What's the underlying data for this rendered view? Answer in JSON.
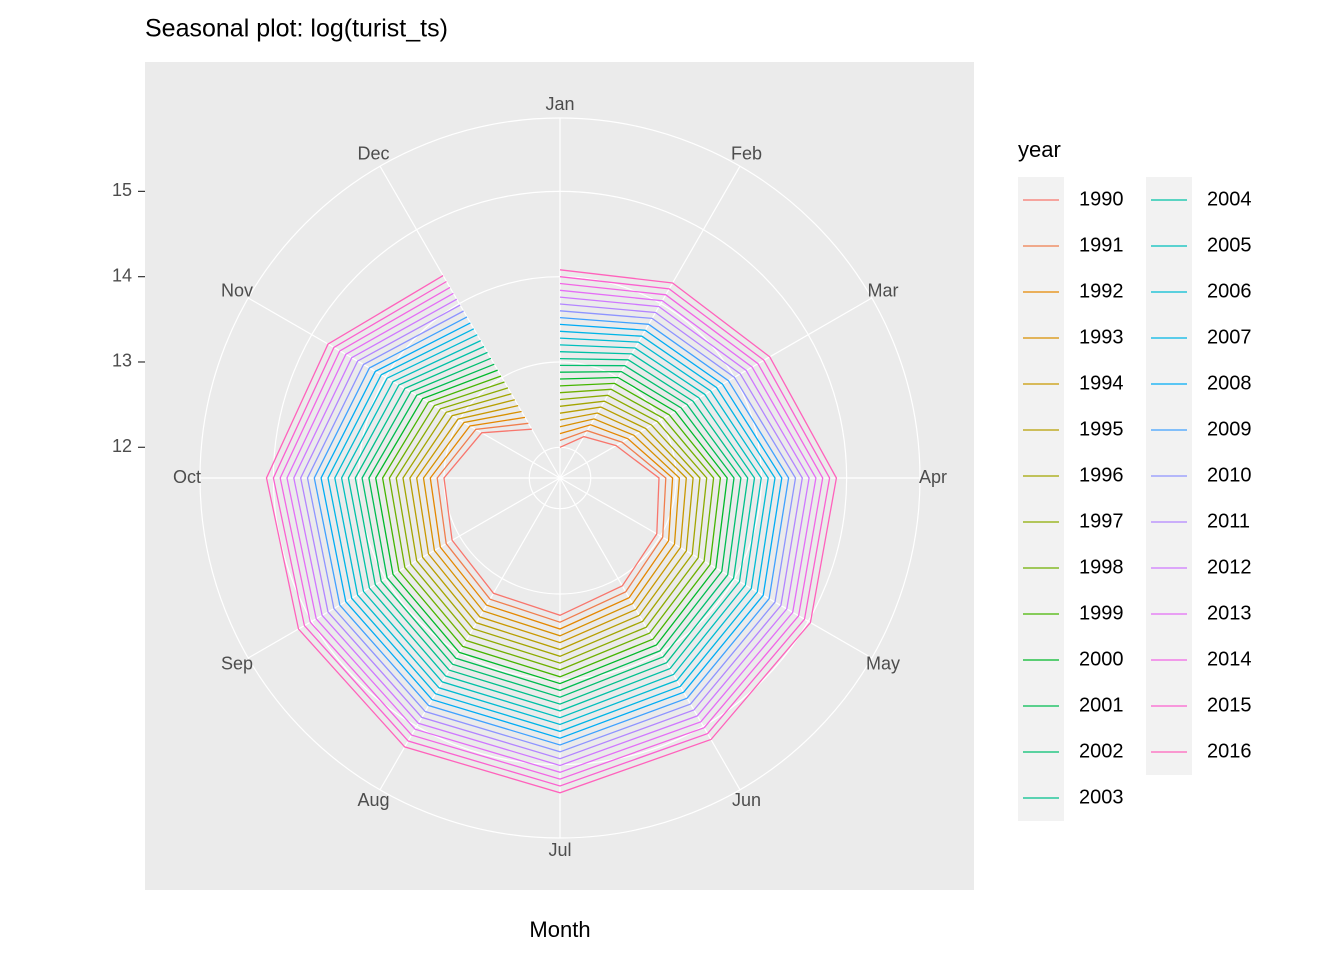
{
  "chart_data": {
    "type": "line",
    "polar": true,
    "title": "Seasonal plot: log(turist_ts)",
    "x_label": "Month",
    "legend_title": "year",
    "categories": [
      "Jan",
      "Feb",
      "Mar",
      "Apr",
      "May",
      "Jun",
      "Jul",
      "Aug",
      "Sep",
      "Oct",
      "Nov",
      "Dec"
    ],
    "ylim": [
      11.64,
      15.86
    ],
    "yticks": [
      12,
      13,
      14,
      15
    ],
    "grid": true,
    "series": [
      {
        "name": "1990",
        "color": "#F8766D",
        "values": [
          12.0,
          12.2,
          12.4,
          12.8,
          12.95,
          13.1,
          13.25,
          13.2,
          13.1,
          13.0,
          12.7,
          12.3
        ]
      },
      {
        "name": "1991",
        "color": "#F07E4E",
        "values": [
          12.08,
          12.28,
          12.48,
          12.88,
          13.03,
          13.18,
          13.33,
          13.28,
          13.18,
          13.08,
          12.78,
          12.38
        ]
      },
      {
        "name": "1992",
        "color": "#E58700",
        "values": [
          12.16,
          12.36,
          12.56,
          12.96,
          13.11,
          13.26,
          13.41,
          13.36,
          13.26,
          13.16,
          12.86,
          12.46
        ]
      },
      {
        "name": "1993",
        "color": "#D89000",
        "values": [
          12.24,
          12.44,
          12.64,
          13.04,
          13.19,
          13.34,
          13.49,
          13.44,
          13.34,
          13.24,
          12.94,
          12.54
        ]
      },
      {
        "name": "1994",
        "color": "#C99800",
        "values": [
          12.32,
          12.52,
          12.72,
          13.12,
          13.27,
          13.42,
          13.57,
          13.52,
          13.42,
          13.32,
          13.02,
          12.62
        ]
      },
      {
        "name": "1995",
        "color": "#B79F00",
        "values": [
          12.4,
          12.6,
          12.8,
          13.2,
          13.35,
          13.5,
          13.65,
          13.6,
          13.5,
          13.4,
          13.1,
          12.7
        ]
      },
      {
        "name": "1996",
        "color": "#A3A500",
        "values": [
          12.48,
          12.68,
          12.88,
          13.28,
          13.43,
          13.58,
          13.73,
          13.68,
          13.58,
          13.48,
          13.18,
          12.78
        ]
      },
      {
        "name": "1997",
        "color": "#8CAB00",
        "values": [
          12.56,
          12.76,
          12.96,
          13.36,
          13.51,
          13.66,
          13.81,
          13.76,
          13.66,
          13.56,
          13.26,
          12.86
        ]
      },
      {
        "name": "1998",
        "color": "#6FB000",
        "values": [
          12.64,
          12.84,
          13.04,
          13.44,
          13.59,
          13.74,
          13.89,
          13.84,
          13.74,
          13.64,
          13.34,
          12.94
        ]
      },
      {
        "name": "1999",
        "color": "#45B500",
        "values": [
          12.72,
          12.92,
          13.12,
          13.52,
          13.67,
          13.82,
          13.97,
          13.92,
          13.82,
          13.72,
          13.42,
          13.02
        ]
      },
      {
        "name": "2000",
        "color": "#00B92A",
        "values": [
          12.8,
          13.0,
          13.2,
          13.6,
          13.75,
          13.9,
          14.05,
          14.0,
          13.9,
          13.8,
          13.5,
          13.1
        ]
      },
      {
        "name": "2001",
        "color": "#00BC51",
        "values": [
          12.88,
          13.08,
          13.28,
          13.68,
          13.83,
          13.98,
          14.13,
          14.08,
          13.98,
          13.88,
          13.58,
          13.18
        ]
      },
      {
        "name": "2002",
        "color": "#00BF6F",
        "values": [
          12.96,
          13.16,
          13.36,
          13.76,
          13.91,
          14.06,
          14.21,
          14.16,
          14.06,
          13.96,
          13.66,
          13.26
        ]
      },
      {
        "name": "2003",
        "color": "#00C08B",
        "values": [
          13.04,
          13.24,
          13.44,
          13.84,
          13.99,
          14.14,
          14.29,
          14.24,
          14.14,
          14.04,
          13.74,
          13.34
        ]
      },
      {
        "name": "2004",
        "color": "#00C1A5",
        "values": [
          13.12,
          13.32,
          13.52,
          13.92,
          14.07,
          14.22,
          14.37,
          14.32,
          14.22,
          14.12,
          13.82,
          13.42
        ]
      },
      {
        "name": "2005",
        "color": "#00BFBD",
        "values": [
          13.2,
          13.4,
          13.6,
          14.0,
          14.15,
          14.3,
          14.45,
          14.4,
          14.3,
          14.2,
          13.9,
          13.5
        ]
      },
      {
        "name": "2006",
        "color": "#00BBD3",
        "values": [
          13.28,
          13.48,
          13.68,
          14.08,
          14.23,
          14.38,
          14.53,
          14.48,
          14.38,
          14.28,
          13.98,
          13.58
        ]
      },
      {
        "name": "2007",
        "color": "#00B5E6",
        "values": [
          13.36,
          13.56,
          13.76,
          14.16,
          14.31,
          14.46,
          14.61,
          14.56,
          14.46,
          14.36,
          14.06,
          13.66
        ]
      },
      {
        "name": "2008",
        "color": "#00ACF5",
        "values": [
          13.44,
          13.64,
          13.84,
          14.24,
          14.39,
          14.54,
          14.69,
          14.64,
          14.54,
          14.44,
          14.14,
          13.74
        ]
      },
      {
        "name": "2009",
        "color": "#3FA1FF",
        "values": [
          13.52,
          13.72,
          13.92,
          14.32,
          14.47,
          14.62,
          14.77,
          14.72,
          14.62,
          14.52,
          14.22,
          13.82
        ]
      },
      {
        "name": "2010",
        "color": "#8E94FF",
        "values": [
          13.6,
          13.8,
          14.0,
          14.4,
          14.55,
          14.7,
          14.85,
          14.8,
          14.7,
          14.6,
          14.3,
          13.9
        ]
      },
      {
        "name": "2011",
        "color": "#B385FF",
        "values": [
          13.68,
          13.88,
          14.08,
          14.48,
          14.63,
          14.78,
          14.93,
          14.88,
          14.78,
          14.68,
          14.38,
          13.98
        ]
      },
      {
        "name": "2012",
        "color": "#CF78FF",
        "values": [
          13.76,
          13.96,
          14.16,
          14.56,
          14.71,
          14.86,
          15.01,
          14.96,
          14.86,
          14.76,
          14.46,
          14.06
        ]
      },
      {
        "name": "2013",
        "color": "#E46EF6",
        "values": [
          13.84,
          14.04,
          14.24,
          14.64,
          14.79,
          14.94,
          15.09,
          15.04,
          14.94,
          14.84,
          14.54,
          14.14
        ]
      },
      {
        "name": "2014",
        "color": "#F266E5",
        "values": [
          13.92,
          14.12,
          14.32,
          14.72,
          14.87,
          15.02,
          15.17,
          15.12,
          15.02,
          14.92,
          14.62,
          14.22
        ]
      },
      {
        "name": "2015",
        "color": "#FB61D0",
        "values": [
          14.0,
          14.2,
          14.4,
          14.8,
          14.95,
          15.1,
          15.25,
          15.2,
          15.1,
          15.0,
          14.7,
          14.3
        ]
      },
      {
        "name": "2016",
        "color": "#FF62BC",
        "values": [
          14.08,
          14.28,
          14.48,
          14.88,
          15.03,
          15.18,
          15.33,
          15.28,
          15.18,
          15.08,
          14.78,
          14.38
        ]
      }
    ]
  }
}
